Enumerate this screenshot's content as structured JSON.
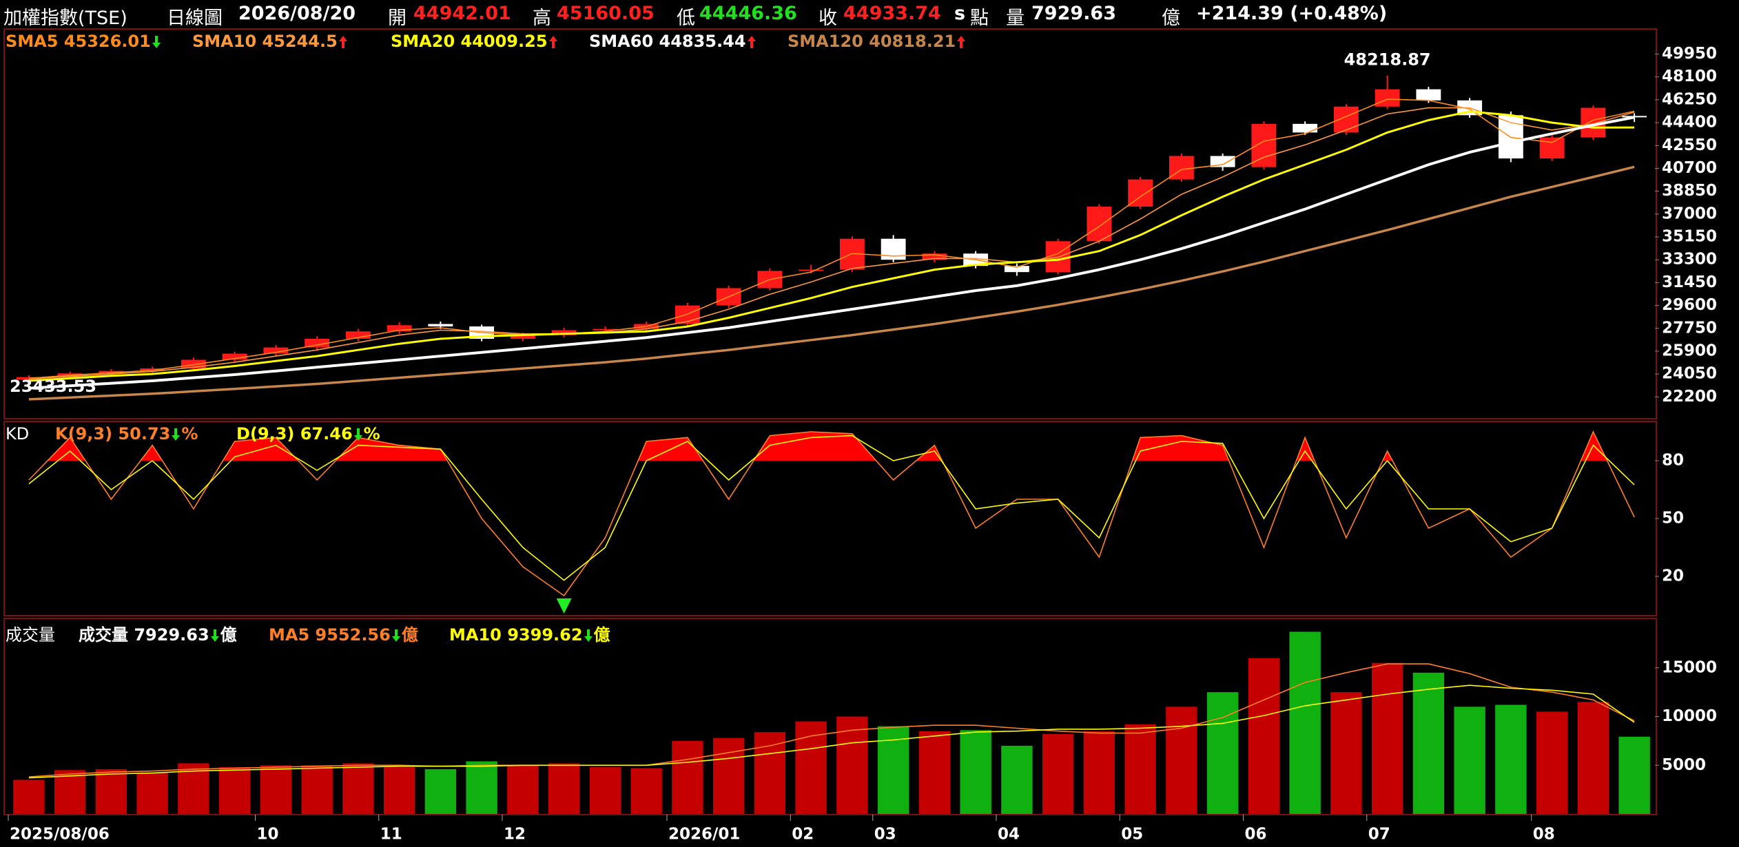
{
  "header": {
    "title": "加權指數(TSE)",
    "period": "日線圖",
    "date": "2026/08/20",
    "open_label": "開",
    "high_label": "高",
    "low_label": "低",
    "close_label": "收",
    "s": "s",
    "unit": "點",
    "volume_label": "量",
    "volume_unit": "億",
    "change": "+214.39 (+0.48%)"
  },
  "chart_data": [
    {
      "type": "candlestick",
      "categories": [
        "2025/08/06",
        null,
        null,
        null,
        null,
        null,
        "10",
        null,
        null,
        "11",
        null,
        null,
        "12",
        null,
        null,
        null,
        "2026/01",
        null,
        null,
        "02",
        null,
        "03",
        null,
        null,
        "04",
        null,
        null,
        "05",
        null,
        null,
        "06",
        null,
        null,
        "07",
        null,
        null,
        null,
        "08",
        null,
        null
      ],
      "candles": {
        "open": [
          23600,
          23800,
          24100,
          24300,
          24500,
          25200,
          25700,
          26200,
          26900,
          27500,
          28100,
          27900,
          26900,
          27200,
          27600,
          27700,
          28100,
          29600,
          31000,
          32400,
          32500,
          35000,
          33300,
          33800,
          32800,
          32300,
          34800,
          37600,
          39800,
          41700,
          40800,
          44300,
          43600,
          45700,
          47100,
          46200,
          45000,
          41500,
          43200,
          44942.01
        ],
        "high": [
          23950,
          24250,
          24450,
          24650,
          25400,
          25850,
          26400,
          27100,
          27700,
          28250,
          28300,
          28050,
          27400,
          27800,
          27900,
          28300,
          29800,
          31200,
          32600,
          32900,
          35200,
          35300,
          34000,
          34000,
          33000,
          35000,
          37800,
          40000,
          41900,
          41900,
          44500,
          44500,
          45900,
          48218.87,
          47300,
          46400,
          45300,
          43400,
          45800,
          45160.05
        ],
        "low": [
          23433.53,
          23650,
          23950,
          24150,
          24350,
          25000,
          25550,
          26000,
          26700,
          27300,
          27700,
          26700,
          26700,
          27000,
          27400,
          27500,
          27900,
          29400,
          30800,
          32200,
          32300,
          33100,
          33100,
          32600,
          32000,
          32100,
          34600,
          37400,
          39600,
          40500,
          40600,
          43400,
          43400,
          45500,
          46000,
          44800,
          41200,
          41300,
          43000,
          44446.36
        ],
        "close": [
          23800,
          24100,
          24300,
          24500,
          25200,
          25700,
          26200,
          26900,
          27500,
          28000,
          27900,
          26900,
          27200,
          27600,
          27700,
          28100,
          29600,
          31000,
          32400,
          32500,
          35000,
          33300,
          33800,
          32800,
          32300,
          34800,
          37600,
          39800,
          41700,
          40800,
          44300,
          43600,
          45700,
          47100,
          46200,
          45000,
          41500,
          43200,
          45600,
          44933.74
        ]
      },
      "up_color": "#ff1a1a",
      "down_color": "#ffffff",
      "series": [
        {
          "name": "SMA5",
          "color": "#ff8c1a",
          "trend": "down",
          "values": [
            23700,
            23950,
            24150,
            24350,
            24800,
            25300,
            25800,
            26400,
            27000,
            27600,
            27800,
            27400,
            27200,
            27300,
            27500,
            27900,
            28900,
            30300,
            31700,
            32300,
            33800,
            33600,
            33700,
            33300,
            32700,
            33800,
            36000,
            38400,
            40600,
            41000,
            42900,
            43500,
            44900,
            46300,
            46200,
            45500,
            43200,
            42800,
            44600,
            45326.01
          ]
        },
        {
          "name": "SMA10",
          "color": "#ff9a3c",
          "trend": "up",
          "values": [
            23650,
            23850,
            24050,
            24250,
            24600,
            25000,
            25500,
            26000,
            26600,
            27200,
            27600,
            27500,
            27300,
            27300,
            27400,
            27700,
            28300,
            29300,
            30500,
            31500,
            32600,
            33000,
            33400,
            33400,
            33100,
            33500,
            34800,
            36600,
            38600,
            40000,
            41600,
            42600,
            43800,
            45100,
            45600,
            45600,
            44400,
            43800,
            44300,
            45244.5
          ]
        },
        {
          "name": "SMA20",
          "color": "#ffff00",
          "trend": "up",
          "values": [
            23500,
            23700,
            23900,
            24050,
            24350,
            24700,
            25100,
            25500,
            26000,
            26500,
            26900,
            27100,
            27200,
            27300,
            27400,
            27500,
            27900,
            28600,
            29400,
            30200,
            31100,
            31800,
            32500,
            32900,
            33100,
            33300,
            34000,
            35300,
            36900,
            38400,
            39800,
            41000,
            42200,
            43600,
            44600,
            45300,
            45000,
            44400,
            44000,
            44009.25
          ]
        },
        {
          "name": "SMA60",
          "color": "#ffffff",
          "trend": "up",
          "values": [
            22900,
            23100,
            23300,
            23500,
            23750,
            24000,
            24300,
            24600,
            24900,
            25200,
            25500,
            25800,
            26100,
            26400,
            26700,
            27000,
            27400,
            27800,
            28300,
            28800,
            29300,
            29800,
            30300,
            30800,
            31200,
            31800,
            32500,
            33300,
            34200,
            35200,
            36300,
            37400,
            38600,
            39800,
            41000,
            42000,
            42800,
            43500,
            44200,
            44835.44
          ]
        },
        {
          "name": "SMA120",
          "color": "#c8864a",
          "trend": "up",
          "values": [
            22000,
            22150,
            22300,
            22450,
            22650,
            22850,
            23050,
            23250,
            23500,
            23750,
            24000,
            24250,
            24500,
            24750,
            25000,
            25300,
            25650,
            26000,
            26400,
            26800,
            27200,
            27650,
            28100,
            28600,
            29100,
            29650,
            30250,
            30900,
            31600,
            32350,
            33150,
            34000,
            34850,
            35700,
            36600,
            37500,
            38400,
            39200,
            40000,
            40818.21
          ]
        }
      ],
      "ylim": [
        20490,
        51930
      ],
      "yticks": [
        22200,
        24050,
        25900,
        27750,
        29600,
        31450,
        33300,
        35150,
        37000,
        38850,
        40700,
        42550,
        44400,
        46250,
        48100,
        49950
      ]
    },
    {
      "type": "kd",
      "title": "KD",
      "unit": "%",
      "series": [
        {
          "name": "K(9,3)",
          "color": "#ff7f27",
          "trend": "down",
          "values": [
            70,
            92,
            60,
            88,
            55,
            90,
            92,
            70,
            92,
            88,
            86,
            50,
            25,
            10,
            40,
            90,
            92,
            60,
            93,
            95,
            94,
            70,
            88,
            45,
            60,
            60,
            30,
            92,
            93,
            88,
            35,
            92,
            40,
            85,
            45,
            55,
            30,
            45,
            95,
            50.73
          ]
        },
        {
          "name": "D(9,3)",
          "color": "#ffff00",
          "trend": "down",
          "values": [
            68,
            85,
            65,
            80,
            60,
            82,
            88,
            75,
            88,
            87,
            86,
            60,
            35,
            18,
            35,
            80,
            90,
            70,
            88,
            92,
            93,
            80,
            85,
            55,
            58,
            60,
            40,
            85,
            90,
            89,
            50,
            85,
            55,
            80,
            55,
            55,
            38,
            45,
            88,
            67.46
          ]
        }
      ],
      "fill_above": 80,
      "fill_color": "#ff0000",
      "signal_color": "#22ee22",
      "ylim": [
        0,
        100
      ],
      "yticks": [
        20,
        50,
        80
      ]
    },
    {
      "type": "volume",
      "title": "成交量",
      "unit": "億",
      "up_color": "#c40000",
      "down_color": "#10b010",
      "series": [
        {
          "name": "成交量",
          "color": "#ffffff",
          "trend": "down",
          "values": [
            3500,
            4500,
            4600,
            4200,
            5200,
            4800,
            5000,
            5000,
            5200,
            4800,
            4600,
            5400,
            5000,
            5200,
            4800,
            4700,
            7500,
            7800,
            8400,
            9500,
            10000,
            9000,
            8500,
            8600,
            7000,
            8200,
            8500,
            9200,
            11000,
            12500,
            16000,
            18700,
            12500,
            15500,
            14500,
            11000,
            11200,
            10500,
            11500,
            7929.63
          ]
        },
        {
          "name": "MA5",
          "color": "#ff7f27",
          "trend": "down",
          "values": [
            3800,
            4100,
            4300,
            4400,
            4600,
            4700,
            4800,
            4900,
            5000,
            5000,
            4900,
            5000,
            5000,
            5000,
            5000,
            5000,
            5600,
            6300,
            7000,
            8000,
            8600,
            8900,
            9100,
            9100,
            8800,
            8500,
            8300,
            8300,
            8800,
            9900,
            11700,
            13500,
            14500,
            15400,
            15400,
            14400,
            13000,
            12500,
            11700,
            9552.56
          ]
        },
        {
          "name": "MA10",
          "color": "#ffff00",
          "trend": "down",
          "values": [
            3700,
            3900,
            4100,
            4200,
            4400,
            4500,
            4600,
            4700,
            4800,
            4900,
            4900,
            4900,
            5000,
            5000,
            5000,
            5000,
            5300,
            5700,
            6200,
            6700,
            7300,
            7600,
            8000,
            8400,
            8500,
            8700,
            8700,
            8800,
            9000,
            9300,
            10100,
            11100,
            11700,
            12300,
            12800,
            13200,
            12900,
            12700,
            12300,
            9399.62
          ]
        }
      ],
      "ylim": [
        0,
        20000
      ],
      "yticks": [
        5000,
        10000,
        15000
      ]
    }
  ]
}
